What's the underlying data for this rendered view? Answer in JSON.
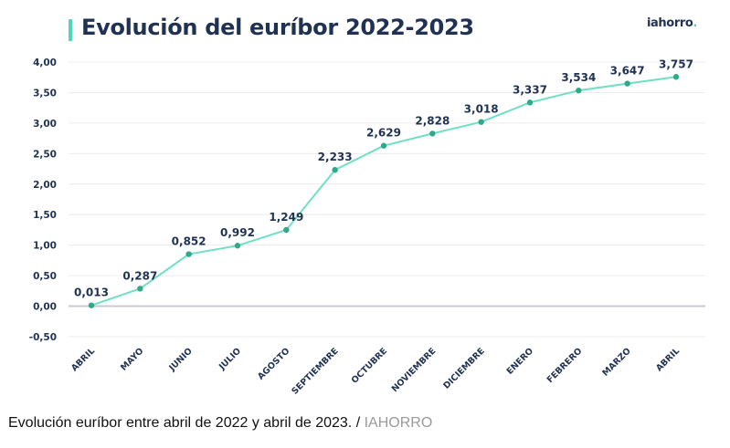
{
  "caption": {
    "text": "Evolución euríbor entre abril de 2022 y abril de 2023. /",
    "source": "IAHORRO"
  },
  "logo": {
    "text": "iahorro",
    "dot": "."
  },
  "colors": {
    "line": "#6ee0c4",
    "marker": "#2fa98a",
    "text": "#1f3253",
    "grid": "#ececec",
    "zero_line": "#c9c9d4",
    "accent": "#4dd9b5"
  },
  "chart_data": {
    "type": "line",
    "title": "Evolución del euríbor 2022-2023",
    "xlabel": "",
    "ylabel": "",
    "categories": [
      "ABRIL",
      "MAYO",
      "JUNIO",
      "JULIO",
      "AGOSTO",
      "SEPTIEMBRE",
      "OCTUBRE",
      "NOVIEMBRE",
      "DICIEMBRE",
      "ENERO",
      "FEBRERO",
      "MARZO",
      "ABRIL"
    ],
    "series": [
      {
        "name": "Euríbor",
        "values": [
          0.013,
          0.287,
          0.852,
          0.992,
          1.249,
          2.233,
          2.629,
          2.828,
          3.018,
          3.337,
          3.534,
          3.647,
          3.757
        ],
        "labels": [
          "0,013",
          "0,287",
          "0,852",
          "0,992",
          "1,249",
          "2,233",
          "2,629",
          "2,828",
          "3,018",
          "3,337",
          "3,534",
          "3,647",
          "3,757"
        ]
      }
    ],
    "ylim": [
      -0.5,
      4.0
    ],
    "yticks": [
      4.0,
      3.5,
      3.0,
      2.5,
      2.0,
      1.5,
      1.0,
      0.5,
      0.0,
      -0.5
    ],
    "ytick_labels": [
      "4,00",
      "3,50",
      "3,00",
      "2,50",
      "2,00",
      "1,50",
      "1,00",
      "0,50",
      "0,00",
      "-0,50"
    ],
    "grid": true,
    "legend": "none",
    "data_labels": true
  }
}
